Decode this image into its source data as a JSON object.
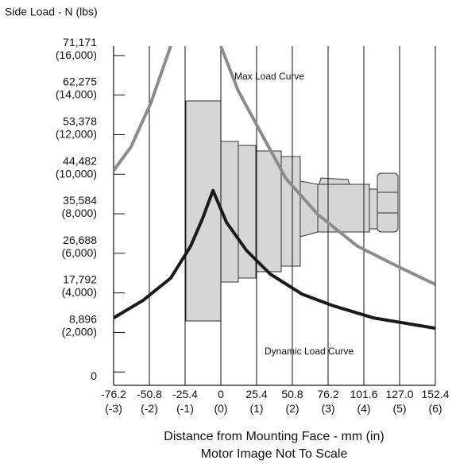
{
  "chart_data": {
    "type": "line",
    "title": "Side Load - N (lbs)",
    "x_label": [
      "Distance from Mounting Face - mm (in)",
      "Motor Image Not To Scale"
    ],
    "annotations": [
      "Max Load Curve",
      "Dynamic Load Curve"
    ],
    "xlim": [
      -76.2,
      152.4
    ],
    "ylim": [
      -3000,
      73300
    ],
    "xticks": [
      {
        "value": -76.2,
        "label": [
          "-76.2",
          "(-3)"
        ]
      },
      {
        "value": -50.8,
        "label": [
          "-50.8",
          "(-2)"
        ]
      },
      {
        "value": -25.4,
        "label": [
          "-25.4",
          "(-1)"
        ]
      },
      {
        "value": 0,
        "label": [
          "0",
          "(0)"
        ]
      },
      {
        "value": 25.4,
        "label": [
          "25.4",
          "(1)"
        ]
      },
      {
        "value": 50.8,
        "label": [
          "50.8",
          "(2)"
        ]
      },
      {
        "value": 76.2,
        "label": [
          "76.2",
          "(3)"
        ]
      },
      {
        "value": 101.6,
        "label": [
          "101.6",
          "(4)"
        ]
      },
      {
        "value": 127,
        "label": [
          "127.0",
          "(5)"
        ]
      },
      {
        "value": 152.4,
        "label": [
          "152.4",
          "(6)"
        ]
      }
    ],
    "yticks": [
      0,
      {
        "value": 8896,
        "label": [
          "8,896",
          "(2,000)"
        ]
      },
      {
        "value": 17792,
        "label": [
          "17,792",
          "(4,000)"
        ]
      },
      {
        "value": 26688,
        "label": [
          "26,688",
          "(6,000)"
        ]
      },
      {
        "value": 35584,
        "label": [
          "35,584",
          "(8,000)"
        ]
      },
      {
        "value": 44482,
        "label": [
          "44,482",
          "(10,000)"
        ]
      },
      {
        "value": 53378,
        "label": [
          "53,378",
          "(12,000)"
        ]
      },
      {
        "value": 62275,
        "label": [
          "62,275",
          "(14,000)"
        ]
      },
      {
        "value": 71171,
        "label": [
          "71,171",
          "(16,000)"
        ]
      }
    ],
    "grid": true,
    "series": [
      {
        "color": "#8c8c8c",
        "x": [
          -76.2,
          -63.8,
          -49.7,
          -35.6,
          null,
          0.0,
          12.4,
          29.3,
          46.3,
          68.9,
          97.1,
          125.3,
          152.4
        ],
        "values": [
          45285,
          50655,
          60500,
          73300,
          null,
          73300,
          63185,
          53340,
          43495,
          35440,
          28280,
          23805,
          19690
        ]
      },
      {
        "color": "#1a1a1a",
        "x": [
          -76.2,
          -55.3,
          -35.6,
          -21.5,
          -13.0,
          -5.6,
          4.0,
          18.1,
          35.1,
          57.6,
          80.2,
          108.4,
          152.4
        ],
        "values": [
          12170,
          16110,
          21120,
          28280,
          34545,
          40810,
          33650,
          27385,
          22015,
          17540,
          14855,
          12170,
          9845
        ]
      }
    ]
  }
}
